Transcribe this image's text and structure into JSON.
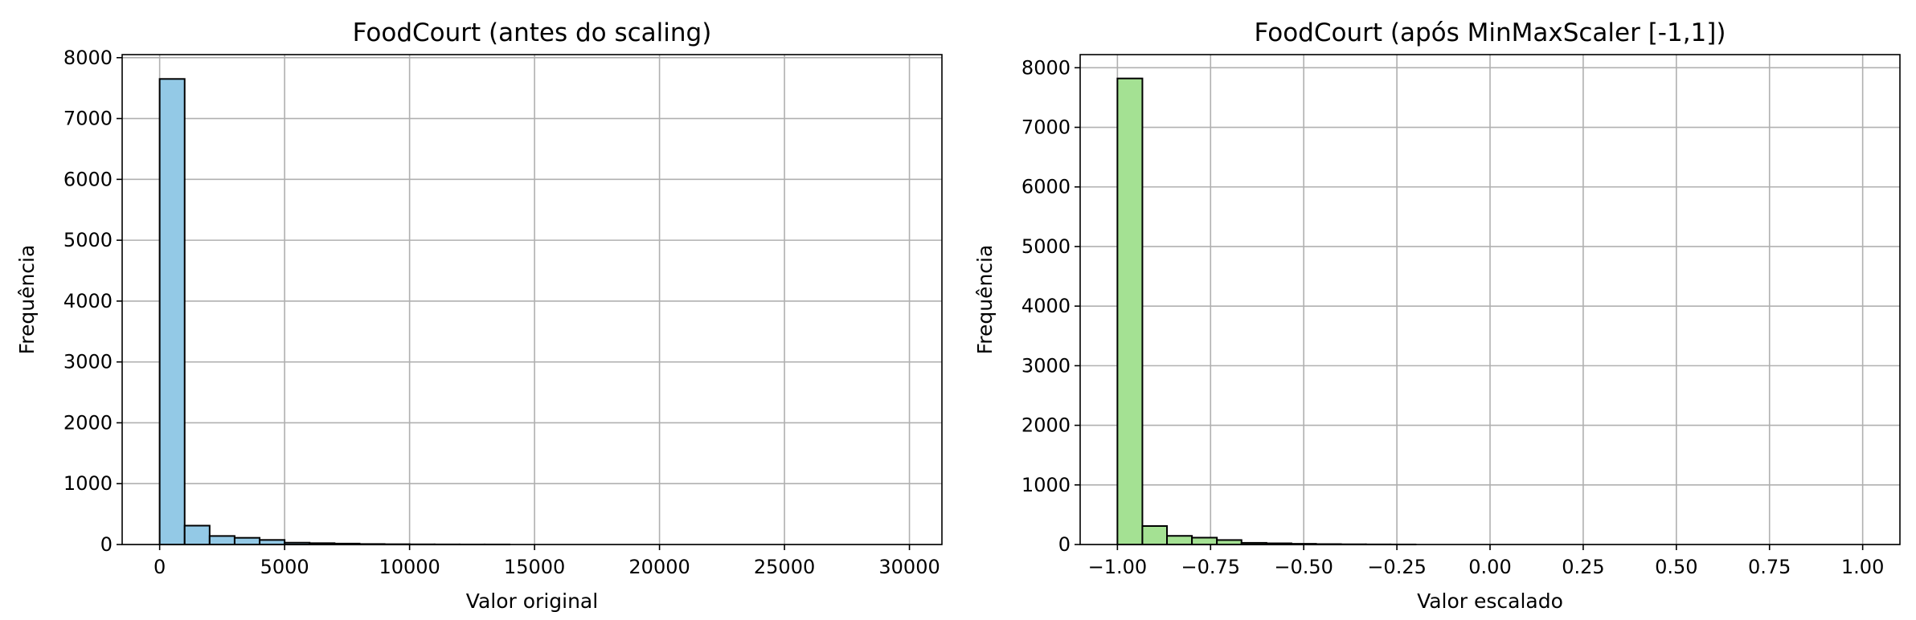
{
  "chart_data": [
    {
      "type": "bar",
      "title": "FoodCourt (antes do scaling)",
      "xlabel": "Valor original",
      "ylabel": "Frequência",
      "bar_color": "#93c9e6",
      "grid": true,
      "xlim": [
        -1500,
        31300
      ],
      "ylim": [
        0,
        8050
      ],
      "xticks": [
        0,
        5000,
        10000,
        15000,
        20000,
        25000,
        30000
      ],
      "xtick_labels": [
        "0",
        "5000",
        "10000",
        "15000",
        "20000",
        "25000",
        "30000"
      ],
      "yticks": [
        0,
        1000,
        2000,
        3000,
        4000,
        5000,
        6000,
        7000,
        8000
      ],
      "ytick_labels": [
        "0",
        "1000",
        "2000",
        "3000",
        "4000",
        "5000",
        "6000",
        "7000",
        "8000"
      ],
      "bins": [
        {
          "x0": 0,
          "x1": 1000,
          "count": 7650
        },
        {
          "x0": 1000,
          "x1": 2000,
          "count": 310
        },
        {
          "x0": 2000,
          "x1": 3000,
          "count": 140
        },
        {
          "x0": 3000,
          "x1": 4000,
          "count": 110
        },
        {
          "x0": 4000,
          "x1": 5000,
          "count": 75
        },
        {
          "x0": 5000,
          "x1": 6000,
          "count": 30
        },
        {
          "x0": 6000,
          "x1": 7000,
          "count": 22
        },
        {
          "x0": 7000,
          "x1": 8000,
          "count": 15
        },
        {
          "x0": 8000,
          "x1": 9000,
          "count": 8
        },
        {
          "x0": 9000,
          "x1": 10000,
          "count": 5
        },
        {
          "x0": 10000,
          "x1": 11000,
          "count": 3
        },
        {
          "x0": 11000,
          "x1": 12000,
          "count": 2
        },
        {
          "x0": 12000,
          "x1": 13000,
          "count": 1
        },
        {
          "x0": 13000,
          "x1": 14000,
          "count": 1
        }
      ]
    },
    {
      "type": "bar",
      "title": "FoodCourt (após MinMaxScaler [-1,1])",
      "xlabel": "Valor escalado",
      "ylabel": "Frequência",
      "bar_color": "#a4e193",
      "grid": true,
      "xlim": [
        -1.1,
        1.1
      ],
      "ylim": [
        0,
        8220
      ],
      "xticks": [
        -1.0,
        -0.75,
        -0.5,
        -0.25,
        0.0,
        0.25,
        0.5,
        0.75,
        1.0
      ],
      "xtick_labels": [
        "−1.00",
        "−0.75",
        "−0.50",
        "−0.25",
        "0.00",
        "0.25",
        "0.50",
        "0.75",
        "1.00"
      ],
      "yticks": [
        0,
        1000,
        2000,
        3000,
        4000,
        5000,
        6000,
        7000,
        8000
      ],
      "ytick_labels": [
        "0",
        "1000",
        "2000",
        "3000",
        "4000",
        "5000",
        "6000",
        "7000",
        "8000"
      ],
      "bins": [
        {
          "x0": -1.0,
          "x1": -0.933,
          "count": 7820
        },
        {
          "x0": -0.933,
          "x1": -0.867,
          "count": 310
        },
        {
          "x0": -0.867,
          "x1": -0.8,
          "count": 145
        },
        {
          "x0": -0.8,
          "x1": -0.733,
          "count": 115
        },
        {
          "x0": -0.733,
          "x1": -0.667,
          "count": 75
        },
        {
          "x0": -0.667,
          "x1": -0.6,
          "count": 28
        },
        {
          "x0": -0.6,
          "x1": -0.533,
          "count": 20
        },
        {
          "x0": -0.533,
          "x1": -0.467,
          "count": 12
        },
        {
          "x0": -0.467,
          "x1": -0.4,
          "count": 7
        },
        {
          "x0": -0.4,
          "x1": -0.333,
          "count": 4
        },
        {
          "x0": -0.333,
          "x1": -0.267,
          "count": 2
        },
        {
          "x0": -0.267,
          "x1": -0.2,
          "count": 1
        }
      ]
    }
  ]
}
